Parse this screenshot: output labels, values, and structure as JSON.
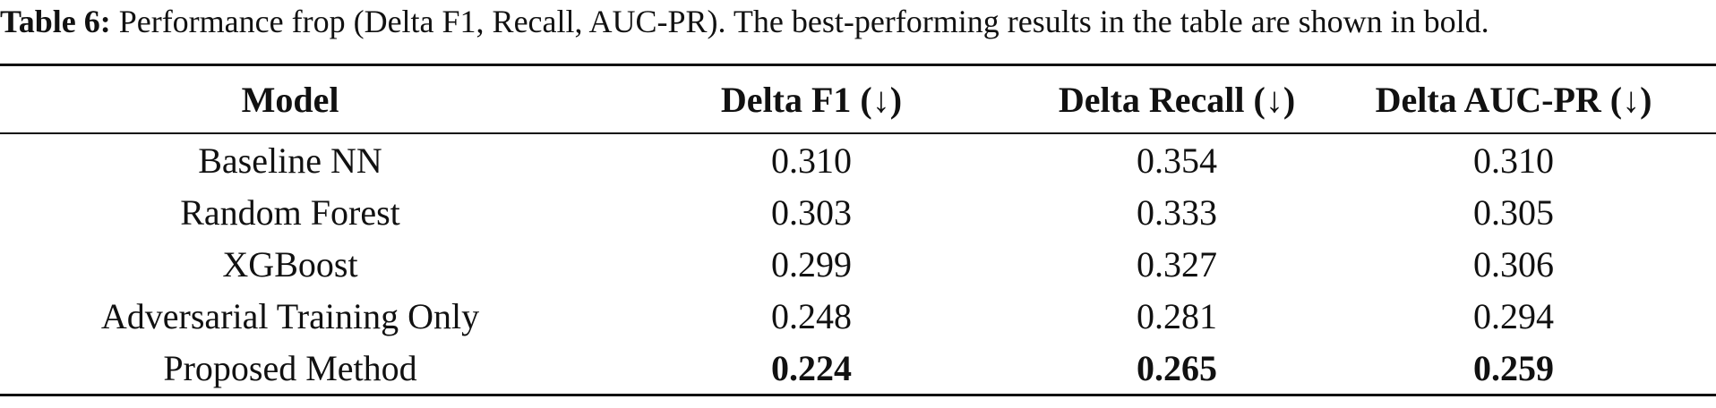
{
  "caption": {
    "label": "Table 6:",
    "text": "Performance frop (Delta F1, Recall, AUC-PR). The best-performing results in the table are shown in bold."
  },
  "table": {
    "header": [
      "Model",
      "Delta F1 (↓)",
      "Delta Recall (↓)",
      "Delta AUC-PR (↓)"
    ],
    "rows": [
      [
        "Baseline NN",
        "0.310",
        "0.354",
        "0.310"
      ],
      [
        "Random Forest",
        "0.303",
        "0.333",
        "0.305"
      ],
      [
        "XGBoost",
        "0.299",
        "0.327",
        "0.306"
      ],
      [
        "Adversarial Training Only",
        "0.248",
        "0.281",
        "0.294"
      ],
      [
        "Proposed Method",
        "0.224",
        "0.265",
        "0.259"
      ]
    ]
  }
}
